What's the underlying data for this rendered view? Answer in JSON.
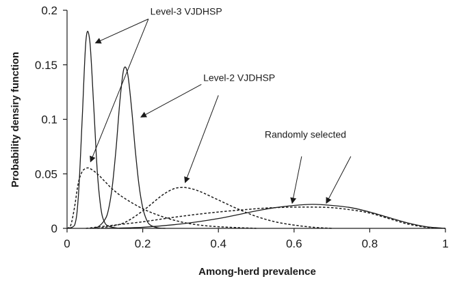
{
  "chart_data": {
    "type": "line",
    "title": "",
    "xlabel": "Among-herd prevalence",
    "ylabel": "Probability densiry function",
    "xlim": [
      0,
      1
    ],
    "ylim": [
      0,
      0.2
    ],
    "xticks": [
      {
        "value": 0,
        "label": "0"
      },
      {
        "value": 0.2,
        "label": "0.2"
      },
      {
        "value": 0.4,
        "label": "0.4"
      },
      {
        "value": 0.6,
        "label": "0.6"
      },
      {
        "value": 0.8,
        "label": "0.8"
      },
      {
        "value": 1,
        "label": "1"
      }
    ],
    "yticks": [
      {
        "value": 0,
        "label": "0"
      },
      {
        "value": 0.05,
        "label": "0.05"
      },
      {
        "value": 0.1,
        "label": "0.1"
      },
      {
        "value": 0.15,
        "label": "0.15"
      },
      {
        "value": 0.2,
        "label": "0.2"
      }
    ],
    "grid": false,
    "legend": "none",
    "colors": {
      "line": "#1a1a1a"
    },
    "series": [
      {
        "style": "solid",
        "x": [
          0.0,
          0.02,
          0.03,
          0.04,
          0.05,
          0.06,
          0.07,
          0.08,
          0.09,
          0.1,
          0.11,
          0.12,
          0.14,
          0.17
        ],
        "y": [
          0.0,
          0.003,
          0.03,
          0.1,
          0.173,
          0.172,
          0.115,
          0.052,
          0.017,
          0.005,
          0.002,
          0.001,
          0.0,
          0.0
        ]
      },
      {
        "style": "dashed",
        "x": [
          0.0,
          0.01,
          0.02,
          0.03,
          0.04,
          0.05,
          0.06,
          0.08,
          0.1,
          0.12,
          0.15,
          0.2,
          0.25,
          0.3,
          0.35,
          0.4,
          0.45,
          0.5
        ],
        "y": [
          0.0,
          0.003,
          0.02,
          0.042,
          0.052,
          0.055,
          0.055,
          0.05,
          0.043,
          0.036,
          0.028,
          0.018,
          0.011,
          0.006,
          0.003,
          0.0015,
          0.0007,
          0.0
        ]
      },
      {
        "style": "solid",
        "x": [
          0.06,
          0.08,
          0.1,
          0.11,
          0.12,
          0.13,
          0.14,
          0.15,
          0.16,
          0.17,
          0.18,
          0.19,
          0.2,
          0.21,
          0.22,
          0.24,
          0.26
        ],
        "y": [
          0.0,
          0.001,
          0.008,
          0.018,
          0.04,
          0.075,
          0.118,
          0.146,
          0.142,
          0.112,
          0.073,
          0.04,
          0.019,
          0.008,
          0.003,
          0.0005,
          0.0
        ]
      },
      {
        "style": "dashed",
        "x": [
          0.08,
          0.1,
          0.15,
          0.2,
          0.25,
          0.28,
          0.3,
          0.32,
          0.35,
          0.4,
          0.45,
          0.5,
          0.55,
          0.6,
          0.65,
          0.7
        ],
        "y": [
          0.0,
          0.001,
          0.005,
          0.016,
          0.03,
          0.036,
          0.0375,
          0.037,
          0.034,
          0.026,
          0.018,
          0.011,
          0.006,
          0.003,
          0.001,
          0.0
        ]
      },
      {
        "style": "solid",
        "x": [
          0.1,
          0.2,
          0.3,
          0.4,
          0.5,
          0.55,
          0.6,
          0.65,
          0.7,
          0.75,
          0.8,
          0.85,
          0.9,
          0.95,
          1.0
        ],
        "y": [
          0.0,
          0.001,
          0.004,
          0.009,
          0.016,
          0.019,
          0.021,
          0.022,
          0.021,
          0.019,
          0.015,
          0.01,
          0.005,
          0.0015,
          0.0
        ]
      },
      {
        "style": "dashed",
        "x": [
          0.05,
          0.1,
          0.2,
          0.3,
          0.4,
          0.5,
          0.55,
          0.6,
          0.65,
          0.7,
          0.75,
          0.8,
          0.85,
          0.9,
          0.95,
          1.0
        ],
        "y": [
          0.0,
          0.002,
          0.006,
          0.011,
          0.015,
          0.018,
          0.019,
          0.0195,
          0.0195,
          0.019,
          0.017,
          0.014,
          0.009,
          0.004,
          0.001,
          0.0
        ]
      }
    ],
    "annotations": [
      {
        "text": "Level-3 VJDHSP",
        "pos": [
          0.22,
          0.196
        ],
        "anchor": "start",
        "arrows": [
          {
            "from": [
              0.215,
              0.192
            ],
            "to": [
              0.075,
              0.17
            ]
          },
          {
            "from": [
              0.215,
              0.192
            ],
            "to": [
              0.062,
              0.061
            ]
          }
        ]
      },
      {
        "text": "Level-2 VJDHSP",
        "pos": [
          0.36,
          0.135
        ],
        "anchor": "start",
        "arrows": [
          {
            "from": [
              0.355,
              0.132
            ],
            "to": [
              0.195,
              0.102
            ]
          },
          {
            "from": [
              0.4,
              0.122
            ],
            "to": [
              0.312,
              0.042
            ]
          }
        ]
      },
      {
        "text": "Randomly selected",
        "pos": [
          0.63,
          0.083
        ],
        "anchor": "middle",
        "arrows": [
          {
            "from": [
              0.62,
              0.066
            ],
            "to": [
              0.595,
              0.023
            ]
          },
          {
            "from": [
              0.75,
              0.066
            ],
            "to": [
              0.685,
              0.023
            ]
          }
        ]
      }
    ]
  }
}
